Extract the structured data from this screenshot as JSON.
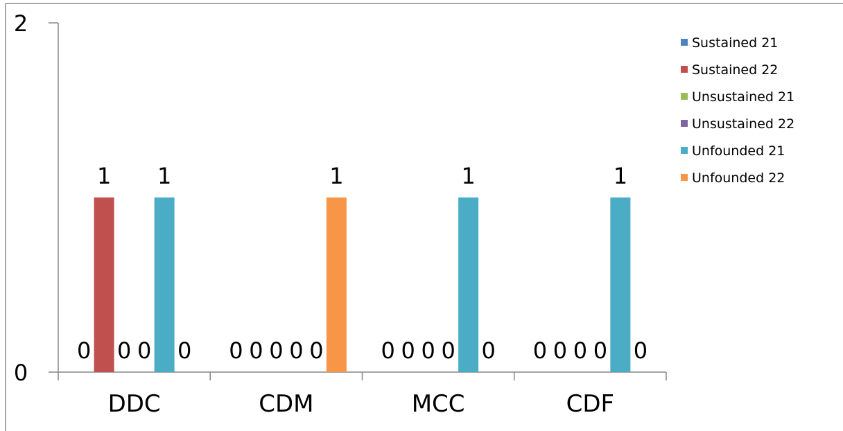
{
  "chart_data": {
    "type": "bar",
    "title": "",
    "xlabel": "",
    "ylabel": "",
    "categories": [
      "DDC",
      "CDM",
      "MCC",
      "CDF"
    ],
    "series": [
      {
        "name": "Sustained 21",
        "color": "#4F81BD",
        "values": [
          0,
          0,
          0,
          0
        ]
      },
      {
        "name": "Sustained 22",
        "color": "#C0504D",
        "values": [
          1,
          0,
          0,
          0
        ]
      },
      {
        "name": "Unsustained 21",
        "color": "#9BBB59",
        "values": [
          0,
          0,
          0,
          0
        ]
      },
      {
        "name": "Unsustained 22",
        "color": "#8064A2",
        "values": [
          0,
          0,
          0,
          0
        ]
      },
      {
        "name": "Unfounded 21",
        "color": "#4BACC6",
        "values": [
          1,
          0,
          1,
          1
        ]
      },
      {
        "name": "Unfounded 22",
        "color": "#F79646",
        "values": [
          0,
          1,
          0,
          0
        ]
      }
    ],
    "ylim": [
      0,
      2
    ],
    "yticks": [
      "0",
      "2"
    ],
    "grid": false,
    "legend_position": "right",
    "data_labels": true
  }
}
